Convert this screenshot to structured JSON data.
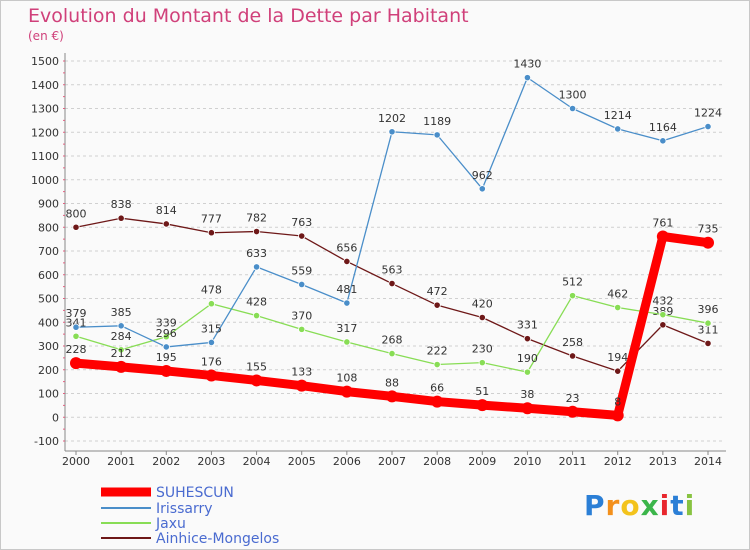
{
  "title": "Evolution du Montant de la Dette par Habitant",
  "subtitle": "(en €)",
  "chart_data": {
    "type": "line",
    "title": "Evolution du Montant de la Dette par Habitant",
    "ylabel": "(en €)",
    "xlabel": "",
    "x": [
      "2000",
      "2001",
      "2002",
      "2003",
      "2004",
      "2005",
      "2006",
      "2007",
      "2008",
      "2009",
      "2010",
      "2011",
      "2012",
      "2013",
      "2014"
    ],
    "ylim": [
      -100,
      1500
    ],
    "yticks": [
      "-100",
      "0",
      "100",
      "200",
      "300",
      "400",
      "500",
      "600",
      "700",
      "800",
      "900",
      "1000",
      "1100",
      "1200",
      "1300",
      "1400",
      "1500"
    ],
    "grid": "horizontal dashed",
    "legend_position": "bottom-left",
    "series": [
      {
        "name": "SUHESCUN",
        "color": "#ff0000",
        "values": [
          228,
          212,
          195,
          176,
          155,
          133,
          108,
          88,
          66,
          51,
          38,
          23,
          8,
          761,
          735
        ],
        "labels": [
          "228",
          "212",
          "195",
          "176",
          "155",
          "133",
          "108",
          "88",
          "66",
          "51",
          "38",
          "23",
          "8",
          "761",
          "735"
        ]
      },
      {
        "name": "Irissarry",
        "color": "#4a8ec9",
        "values": [
          379,
          385,
          296,
          315,
          633,
          559,
          481,
          1202,
          1189,
          962,
          1430,
          1300,
          1214,
          1164,
          1224
        ],
        "labels": [
          "379",
          "385",
          "296",
          "315",
          "633",
          "559",
          "481",
          "1202",
          "1189",
          "962",
          "1430",
          "1300",
          "1214",
          "1164",
          "1224"
        ]
      },
      {
        "name": "Jaxu",
        "color": "#88dd55",
        "values": [
          341,
          284,
          339,
          478,
          428,
          370,
          317,
          268,
          222,
          230,
          190,
          512,
          462,
          432,
          396
        ],
        "labels": [
          "341",
          "284",
          "339",
          "478",
          "428",
          "370",
          "317",
          "268",
          "222",
          "230",
          "190",
          "512",
          "462",
          "432",
          "396"
        ]
      },
      {
        "name": "Ainhice-Mongelos",
        "color": "#6e1818",
        "values": [
          800,
          838,
          814,
          777,
          782,
          763,
          656,
          563,
          472,
          420,
          331,
          258,
          194,
          389,
          311
        ],
        "labels": [
          "800",
          "838",
          "814",
          "777",
          "782",
          "763",
          "656",
          "563",
          "472",
          "420",
          "331",
          "258",
          "194",
          "389",
          "311"
        ]
      }
    ]
  },
  "logo": {
    "letters": [
      "P",
      "r",
      "o",
      "x",
      "i",
      "t",
      "i"
    ],
    "colors": [
      "#2b7fd6",
      "#f3901c",
      "#f3c31c",
      "#3bb54a",
      "#e8262d",
      "#2b7fd6",
      "#88c341"
    ]
  }
}
